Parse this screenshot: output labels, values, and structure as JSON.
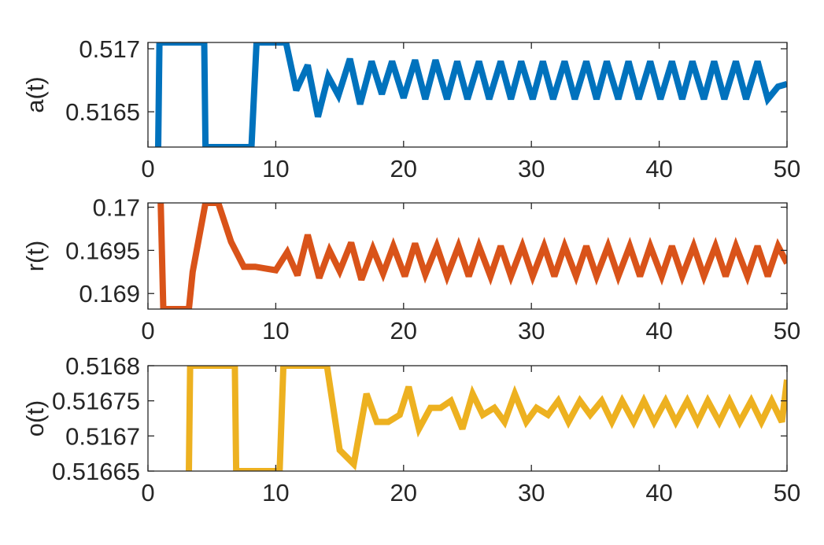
{
  "chart_data": [
    {
      "type": "line",
      "ylabel": "a(t)",
      "xlabel": "",
      "title": "",
      "xlim": [
        0,
        50
      ],
      "ylim": [
        0.51622,
        0.51705
      ],
      "xticks": [
        0,
        10,
        20,
        30,
        40,
        50
      ],
      "yticks": [
        0.5165,
        0.517
      ],
      "xtick_labels": [
        "0",
        "10",
        "20",
        "30",
        "40",
        "50"
      ],
      "ytick_labels": [
        "0.5165",
        "0.517"
      ],
      "color": "#0072BD",
      "series": [
        {
          "x": [
            0.8,
            0.9,
            4.4,
            4.5,
            8.1,
            8.5,
            10.8,
            11.6,
            12.5,
            13.3,
            14.1,
            14.9,
            15.8,
            16.6,
            17.5,
            18.3,
            19.1,
            20.0,
            20.9,
            21.7,
            22.5,
            23.4,
            24.2,
            25.0,
            25.9,
            26.7,
            27.6,
            28.4,
            29.2,
            30.1,
            30.9,
            31.7,
            32.6,
            33.4,
            34.3,
            35.1,
            35.9,
            36.8,
            37.6,
            38.4,
            39.3,
            40.1,
            41.0,
            41.8,
            42.6,
            43.5,
            44.3,
            45.1,
            46.0,
            46.8,
            47.7,
            48.5,
            49.3,
            50.0
          ],
          "y": [
            0.51622,
            0.51705,
            0.51705,
            0.51622,
            0.51622,
            0.51705,
            0.51705,
            0.51667,
            0.51687,
            0.51646,
            0.51678,
            0.51663,
            0.51692,
            0.51656,
            0.5169,
            0.51664,
            0.5169,
            0.51661,
            0.51691,
            0.5166,
            0.51691,
            0.5166,
            0.5169,
            0.5166,
            0.5169,
            0.5166,
            0.5169,
            0.5166,
            0.5169,
            0.5166,
            0.5169,
            0.5166,
            0.5169,
            0.5166,
            0.5169,
            0.5166,
            0.5169,
            0.5166,
            0.5169,
            0.5166,
            0.5169,
            0.5166,
            0.5169,
            0.5166,
            0.5169,
            0.5166,
            0.5169,
            0.5166,
            0.5169,
            0.5166,
            0.5169,
            0.5166,
            0.5167,
            0.51672
          ]
        }
      ]
    },
    {
      "type": "line",
      "ylabel": "r(t)",
      "xlabel": "",
      "title": "",
      "xlim": [
        0,
        50
      ],
      "ylim": [
        0.16882,
        0.17005
      ],
      "xticks": [
        0,
        10,
        20,
        30,
        40,
        50
      ],
      "yticks": [
        0.169,
        0.1695,
        0.17
      ],
      "xtick_labels": [
        "0",
        "10",
        "20",
        "30",
        "40",
        "50"
      ],
      "ytick_labels": [
        "0.169",
        "0.1695",
        "0.17"
      ],
      "color": "#D95319",
      "series": [
        {
          "x": [
            1.0,
            1.2,
            3.2,
            3.5,
            4.5,
            5.5,
            6.5,
            7.5,
            8.4,
            9.2,
            10.0,
            10.9,
            11.7,
            12.5,
            13.4,
            14.2,
            15.0,
            15.9,
            16.7,
            17.6,
            18.4,
            19.2,
            20.1,
            20.9,
            21.7,
            22.6,
            23.4,
            24.3,
            25.1,
            25.9,
            26.8,
            27.6,
            28.4,
            29.3,
            30.1,
            31.0,
            31.8,
            32.6,
            33.5,
            34.3,
            35.1,
            36.0,
            36.8,
            37.7,
            38.5,
            39.3,
            40.2,
            41.0,
            41.8,
            42.7,
            43.5,
            44.4,
            45.2,
            46.0,
            46.9,
            47.7,
            48.5,
            49.3,
            50.0
          ],
          "y": [
            0.17005,
            0.16882,
            0.16882,
            0.16925,
            0.17005,
            0.17005,
            0.1696,
            0.16931,
            0.16931,
            0.16929,
            0.16927,
            0.16948,
            0.16921,
            0.16968,
            0.16918,
            0.1695,
            0.16926,
            0.16959,
            0.16916,
            0.16952,
            0.16923,
            0.16955,
            0.1692,
            0.16958,
            0.16922,
            0.16955,
            0.1692,
            0.16955,
            0.1692,
            0.16955,
            0.1692,
            0.16955,
            0.1692,
            0.16955,
            0.1692,
            0.16955,
            0.1692,
            0.16955,
            0.1692,
            0.16955,
            0.1692,
            0.16955,
            0.1692,
            0.16955,
            0.1692,
            0.16955,
            0.1692,
            0.16955,
            0.1692,
            0.16955,
            0.1692,
            0.16955,
            0.1692,
            0.16955,
            0.1692,
            0.16955,
            0.1692,
            0.16955,
            0.16935
          ]
        }
      ]
    },
    {
      "type": "line",
      "ylabel": "o(t)",
      "xlabel": "",
      "title": "",
      "xlim": [
        0,
        50
      ],
      "ylim": [
        0.51665,
        0.5168
      ],
      "xticks": [
        0,
        10,
        20,
        30,
        40,
        50
      ],
      "yticks": [
        0.51665,
        0.5167,
        0.51675,
        0.5168
      ],
      "xtick_labels": [
        "0",
        "10",
        "20",
        "30",
        "40",
        "50"
      ],
      "ytick_labels": [
        "0.51665",
        "0.5167",
        "0.51675",
        "0.5168"
      ],
      "color": "#EDB120",
      "series": [
        {
          "x": [
            3.2,
            3.3,
            6.8,
            6.9,
            10.3,
            10.6,
            14.0,
            15.0,
            16.1,
            17.1,
            17.9,
            18.8,
            19.7,
            20.4,
            21.2,
            22.1,
            22.9,
            23.7,
            24.6,
            25.4,
            26.2,
            27.1,
            27.9,
            28.7,
            29.6,
            30.4,
            31.3,
            32.1,
            32.9,
            33.8,
            34.6,
            35.5,
            36.3,
            37.1,
            38.0,
            38.8,
            39.6,
            40.5,
            41.3,
            42.2,
            43.0,
            43.8,
            44.7,
            45.5,
            46.3,
            47.2,
            48.0,
            48.8,
            49.6,
            50.0
          ],
          "y": [
            0.51665,
            0.5168,
            0.5168,
            0.51665,
            0.51665,
            0.5168,
            0.5168,
            0.51668,
            0.51666,
            0.51676,
            0.51672,
            0.51672,
            0.51673,
            0.51677,
            0.51671,
            0.51674,
            0.51674,
            0.51675,
            0.51671,
            0.51676,
            0.51673,
            0.51674,
            0.51672,
            0.51676,
            0.51672,
            0.51674,
            0.51673,
            0.51675,
            0.51672,
            0.51675,
            0.51673,
            0.51675,
            0.51672,
            0.51675,
            0.51672,
            0.51675,
            0.51672,
            0.51675,
            0.51672,
            0.51675,
            0.51672,
            0.51675,
            0.51672,
            0.51675,
            0.51672,
            0.51675,
            0.51672,
            0.51675,
            0.51672,
            0.51678
          ]
        }
      ]
    }
  ]
}
